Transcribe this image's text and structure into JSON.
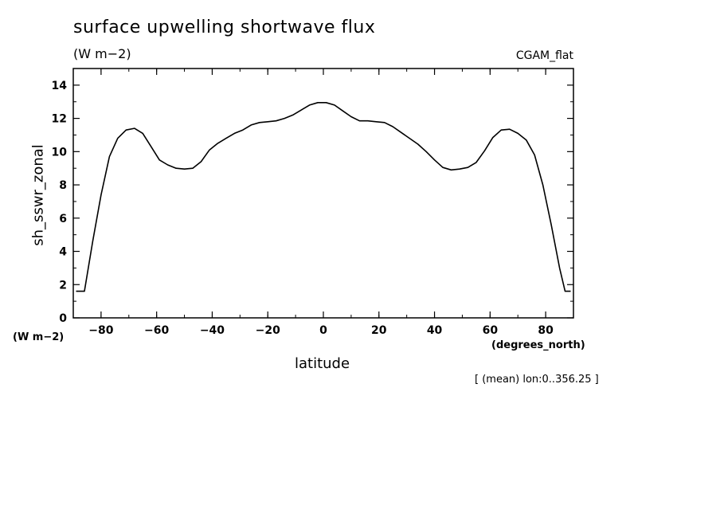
{
  "figure": {
    "title": "surface upwelling shortwave flux",
    "units_top": "(W m−2)",
    "dataset": "CGAM_flat",
    "units_left": "(W m−2)",
    "x_units": "(degrees_north)",
    "subset_note": "[ (mean) lon:0..356.25 ]"
  },
  "chart_data": {
    "type": "line",
    "xlabel": "latitude",
    "ylabel": "sh_sswr_zonal",
    "xlim": [
      -90,
      90
    ],
    "ylim": [
      0,
      15
    ],
    "x_ticks": [
      -80,
      -60,
      -40,
      -20,
      0,
      20,
      40,
      60,
      80
    ],
    "x_tick_labels": [
      "−80",
      "−60",
      "−40",
      "−20",
      "0",
      "20",
      "40",
      "60",
      "80"
    ],
    "y_ticks": [
      0,
      2,
      4,
      6,
      8,
      10,
      12,
      14
    ],
    "y_tick_labels": [
      "0",
      "2",
      "4",
      "6",
      "8",
      "10",
      "12",
      "14"
    ],
    "grid": false,
    "series": [
      {
        "x": [
          -89,
          -86,
          -83,
          -80,
          -77,
          -74,
          -71,
          -68,
          -65,
          -62,
          -59,
          -56,
          -53,
          -50,
          -47,
          -44,
          -41,
          -38,
          -35,
          -32,
          -29,
          -26,
          -23,
          -20,
          -17,
          -14,
          -11,
          -8,
          -5,
          -2,
          1,
          4,
          7,
          10,
          13,
          16,
          19,
          22,
          25,
          28,
          31,
          34,
          37,
          40,
          43,
          46,
          49,
          52,
          55,
          58,
          61,
          64,
          67,
          70,
          73,
          76,
          79,
          82,
          85,
          87,
          89
        ],
        "y": [
          1.6,
          1.6,
          4.6,
          7.4,
          9.7,
          10.8,
          11.3,
          11.4,
          11.1,
          10.3,
          9.5,
          9.2,
          9.0,
          8.95,
          9.0,
          9.4,
          10.1,
          10.5,
          10.8,
          11.1,
          11.3,
          11.6,
          11.75,
          11.8,
          11.85,
          12.0,
          12.2,
          12.5,
          12.8,
          12.95,
          12.95,
          12.8,
          12.45,
          12.1,
          11.85,
          11.85,
          11.8,
          11.75,
          11.5,
          11.15,
          10.8,
          10.45,
          10.0,
          9.5,
          9.05,
          8.9,
          8.95,
          9.05,
          9.35,
          10.05,
          10.85,
          11.3,
          11.35,
          11.1,
          10.7,
          9.8,
          8.0,
          5.6,
          3.0,
          1.6,
          1.6
        ]
      }
    ]
  }
}
